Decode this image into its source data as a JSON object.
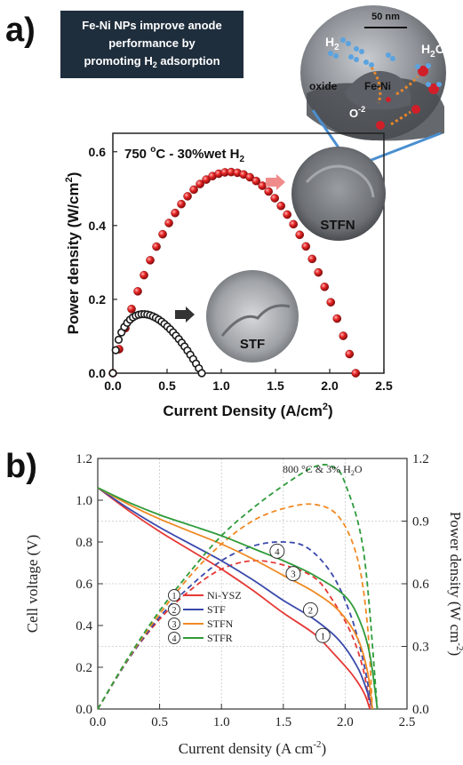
{
  "figure": {
    "panel_a_label": "a)",
    "panel_b_label": "b)"
  },
  "callout": {
    "line1": "Fe-Ni NPs improve anode",
    "line2": "performance by",
    "line3_main": "promoting H",
    "line3_sub": "2",
    "line3_end": " adsorption"
  },
  "schematic": {
    "scale_bar": "50 nm",
    "h2_main": "H",
    "h2_sub": "2",
    "h2o_main": "H",
    "h2o_sub": "2",
    "h2o_end": "O",
    "oxide": "oxide",
    "feni": "Fe-Ni",
    "o2_main": "O",
    "o2_sup": "-2"
  },
  "colors": {
    "stfn_marker": "#e02020",
    "stf_marker": "#222222",
    "ni_ysz": "#e53935",
    "stf": "#3949ab",
    "stfn": "#f08a24",
    "stfr": "#2e9b3a",
    "callout_bg": "#1f2e3d",
    "highlight_line": "#4a8fd0"
  },
  "chart_data": [
    {
      "type": "scatter",
      "title_prefix": "750 ",
      "title_degree": "o",
      "title_suffix": "C - 30%wet H",
      "title_sub": "2",
      "xlabel_main": "Current Density (A/cm",
      "xlabel_sup": "2",
      "xlabel_end": ")",
      "ylabel_main": "Power density (W/cm",
      "ylabel_sup": "2",
      "ylabel_end": ")",
      "xlim": [
        0,
        2.5
      ],
      "ylim": [
        0,
        0.65
      ],
      "xticks": [
        "0.0",
        "0.5",
        "1.0",
        "1.5",
        "2.0",
        "2.5"
      ],
      "yticks": [
        "0.0",
        "0.2",
        "0.4",
        "0.6"
      ],
      "series": [
        {
          "name": "STFN",
          "peak_power": 0.545,
          "peak_current": 1.08,
          "max_current": 2.24,
          "n_points": 40,
          "marker": "red-sphere"
        },
        {
          "name": "STF",
          "peak_power": 0.16,
          "peak_current": 0.28,
          "max_current": 0.82,
          "n_points": 32,
          "marker": "black-open-circle"
        }
      ],
      "annotations": [
        "STFN",
        "STF"
      ]
    },
    {
      "type": "line",
      "title_prefix": "800 °C & 3% H",
      "title_sub": "2",
      "title_suffix": "O",
      "xlabel_main": "Current density (A cm",
      "xlabel_sup": "-2",
      "xlabel_end": ")",
      "ylabel_left": "Cell voltage (V)",
      "ylabel_right_main": "Power density (W cm",
      "ylabel_right_sup": "-2",
      "ylabel_right_end": ")",
      "xlim": [
        0,
        2.5
      ],
      "ylim_left": [
        0,
        1.2
      ],
      "ylim_right": [
        0,
        1.2
      ],
      "xticks": [
        "0.0",
        "0.5",
        "1.0",
        "1.5",
        "2.0",
        "2.5"
      ],
      "yticks_left": [
        "0.0",
        "0.2",
        "0.4",
        "0.6",
        "0.8",
        "1.0",
        "1.2"
      ],
      "yticks_right": [
        "0.0",
        "0.3",
        "0.6",
        "0.9",
        "1.2"
      ],
      "grid": true,
      "legend_position": "lower-left",
      "series": [
        {
          "name": "Ni-YSZ",
          "number": "1",
          "voltage": [
            [
              0,
              1.06
            ],
            [
              0.25,
              0.95
            ],
            [
              0.5,
              0.85
            ],
            [
              0.75,
              0.76
            ],
            [
              1.0,
              0.67
            ],
            [
              1.25,
              0.57
            ],
            [
              1.5,
              0.46
            ],
            [
              1.75,
              0.36
            ],
            [
              1.9,
              0.27
            ],
            [
              2.05,
              0.17
            ],
            [
              2.15,
              0.08
            ],
            [
              2.2,
              0.0
            ]
          ],
          "power": [
            [
              0,
              0.0
            ],
            [
              0.25,
              0.24
            ],
            [
              0.5,
              0.43
            ],
            [
              0.75,
              0.57
            ],
            [
              1.0,
              0.67
            ],
            [
              1.25,
              0.71
            ],
            [
              1.5,
              0.69
            ],
            [
              1.75,
              0.63
            ],
            [
              1.9,
              0.52
            ],
            [
              2.05,
              0.36
            ],
            [
              2.15,
              0.18
            ],
            [
              2.2,
              0.0
            ]
          ]
        },
        {
          "name": "STF",
          "number": "2",
          "voltage": [
            [
              0,
              1.06
            ],
            [
              0.25,
              0.96
            ],
            [
              0.5,
              0.87
            ],
            [
              0.75,
              0.79
            ],
            [
              1.0,
              0.71
            ],
            [
              1.25,
              0.62
            ],
            [
              1.5,
              0.52
            ],
            [
              1.75,
              0.43
            ],
            [
              1.95,
              0.33
            ],
            [
              2.1,
              0.2
            ],
            [
              2.18,
              0.08
            ],
            [
              2.22,
              0.0
            ]
          ],
          "power": [
            [
              0,
              0.0
            ],
            [
              0.25,
              0.24
            ],
            [
              0.5,
              0.44
            ],
            [
              0.75,
              0.59
            ],
            [
              1.0,
              0.71
            ],
            [
              1.25,
              0.78
            ],
            [
              1.5,
              0.8
            ],
            [
              1.7,
              0.77
            ],
            [
              1.9,
              0.64
            ],
            [
              2.05,
              0.44
            ],
            [
              2.15,
              0.22
            ],
            [
              2.22,
              0.0
            ]
          ]
        },
        {
          "name": "STFN",
          "number": "3",
          "voltage": [
            [
              0,
              1.06
            ],
            [
              0.25,
              0.98
            ],
            [
              0.5,
              0.91
            ],
            [
              0.75,
              0.85
            ],
            [
              1.0,
              0.79
            ],
            [
              1.25,
              0.72
            ],
            [
              1.5,
              0.64
            ],
            [
              1.75,
              0.56
            ],
            [
              1.95,
              0.47
            ],
            [
              2.1,
              0.34
            ],
            [
              2.18,
              0.18
            ],
            [
              2.22,
              0.0
            ]
          ],
          "power": [
            [
              0,
              0.0
            ],
            [
              0.25,
              0.245
            ],
            [
              0.5,
              0.455
            ],
            [
              0.75,
              0.64
            ],
            [
              1.0,
              0.79
            ],
            [
              1.25,
              0.9
            ],
            [
              1.5,
              0.96
            ],
            [
              1.75,
              0.98
            ],
            [
              1.95,
              0.92
            ],
            [
              2.1,
              0.72
            ],
            [
              2.18,
              0.4
            ],
            [
              2.22,
              0.0
            ]
          ]
        },
        {
          "name": "STFR",
          "number": "4",
          "voltage": [
            [
              0,
              1.06
            ],
            [
              0.25,
              0.99
            ],
            [
              0.5,
              0.93
            ],
            [
              0.75,
              0.88
            ],
            [
              1.0,
              0.83
            ],
            [
              1.25,
              0.77
            ],
            [
              1.5,
              0.71
            ],
            [
              1.75,
              0.64
            ],
            [
              2.0,
              0.54
            ],
            [
              2.12,
              0.42
            ],
            [
              2.2,
              0.26
            ],
            [
              2.26,
              0.0
            ]
          ],
          "power": [
            [
              0,
              0.0
            ],
            [
              0.25,
              0.25
            ],
            [
              0.5,
              0.47
            ],
            [
              0.75,
              0.66
            ],
            [
              1.0,
              0.83
            ],
            [
              1.25,
              0.96
            ],
            [
              1.5,
              1.07
            ],
            [
              1.75,
              1.16
            ],
            [
              1.9,
              1.16
            ],
            [
              2.0,
              1.08
            ],
            [
              2.15,
              0.75
            ],
            [
              2.26,
              0.0
            ]
          ]
        }
      ]
    }
  ]
}
